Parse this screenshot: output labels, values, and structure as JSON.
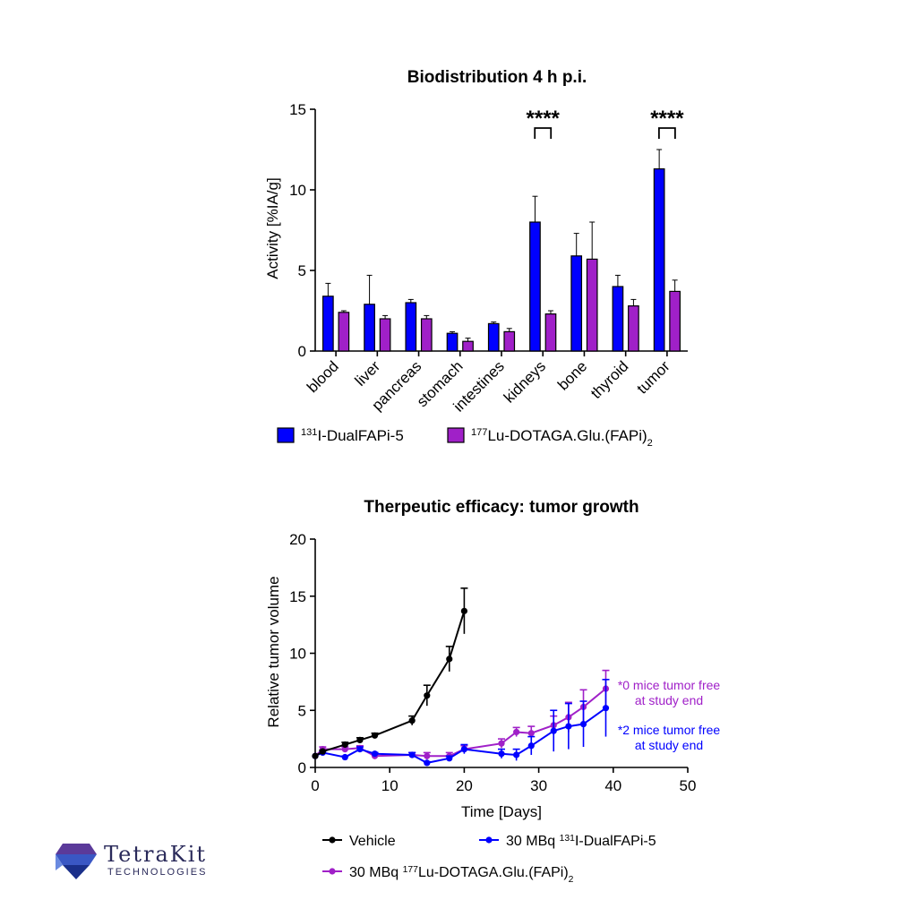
{
  "chart_data": [
    {
      "type": "bar",
      "title": "Biodistribution 4 h p.i.",
      "xlabel": "",
      "ylabel": "Activity [%IA/g]",
      "ylim": [
        0,
        15
      ],
      "yticks": [
        0,
        5,
        10,
        15
      ],
      "categories": [
        "blood",
        "liver",
        "pancreas",
        "stomach",
        "intestines",
        "kidneys",
        "bone",
        "thyroid",
        "tumor"
      ],
      "series": [
        {
          "name_sup": "131",
          "name_main": "I-DualFAPi-5",
          "color": "#0000ff",
          "values": [
            3.4,
            2.9,
            3.0,
            1.1,
            1.7,
            8.0,
            5.9,
            4.0,
            11.3
          ],
          "errors": [
            0.8,
            1.8,
            0.2,
            0.1,
            0.1,
            1.6,
            1.4,
            0.7,
            1.2
          ]
        },
        {
          "name_sup": "177",
          "name_main": "Lu-DOTAGA.Glu.(FAPi)",
          "name_sub": "2",
          "color": "#a020c8",
          "values": [
            2.4,
            2.0,
            2.0,
            0.6,
            1.2,
            2.3,
            5.7,
            2.8,
            3.7
          ],
          "errors": [
            0.1,
            0.2,
            0.2,
            0.2,
            0.2,
            0.2,
            2.3,
            0.4,
            0.7
          ]
        }
      ],
      "significance": [
        {
          "category": "kidneys",
          "label": "****"
        },
        {
          "category": "tumor",
          "label": "****"
        }
      ],
      "legend_position": "bottom",
      "grid": false
    },
    {
      "type": "line",
      "title": "Therpeutic efficacy: tumor growth",
      "xlabel": "Time [Days]",
      "ylabel": "Relative tumor volume",
      "xlim": [
        0,
        50
      ],
      "ylim": [
        0,
        20
      ],
      "xticks": [
        0,
        10,
        20,
        30,
        40,
        50
      ],
      "yticks": [
        0,
        5,
        10,
        15,
        20
      ],
      "series": [
        {
          "name_main": "Vehicle",
          "color": "#000000",
          "x": [
            0,
            1,
            4,
            6,
            8,
            13,
            15,
            18,
            20
          ],
          "y": [
            1.0,
            1.4,
            2.0,
            2.4,
            2.8,
            4.1,
            6.3,
            9.5,
            13.7
          ],
          "errors": [
            0,
            0.1,
            0.2,
            0.2,
            0.2,
            0.4,
            0.9,
            1.1,
            2.0
          ]
        },
        {
          "name_prefix": "30 MBq ",
          "name_sup": "131",
          "name_main": "I-DualFAPi-5",
          "color": "#0000ff",
          "x": [
            0,
            1,
            4,
            6,
            8,
            13,
            15,
            18,
            20,
            25,
            27,
            29,
            32,
            34,
            36,
            39
          ],
          "y": [
            1.0,
            1.3,
            0.9,
            1.6,
            1.2,
            1.1,
            0.4,
            0.8,
            1.6,
            1.2,
            1.1,
            1.9,
            3.2,
            3.6,
            3.8,
            5.2
          ],
          "errors": [
            0,
            0.1,
            0.1,
            0.2,
            0.1,
            0.2,
            0.1,
            0.2,
            0.4,
            0.4,
            0.5,
            0.8,
            1.8,
            2.0,
            2.0,
            2.5
          ]
        },
        {
          "name_prefix": "30 MBq ",
          "name_sup": "177",
          "name_main": "Lu-DOTAGA.Glu.(FAPi)",
          "name_sub": "2",
          "color": "#a020c8",
          "x": [
            0,
            1,
            4,
            6,
            8,
            13,
            15,
            18,
            20,
            25,
            27,
            29,
            32,
            34,
            36,
            39
          ],
          "y": [
            1.0,
            1.6,
            1.6,
            1.7,
            1.0,
            1.1,
            1.0,
            1.0,
            1.6,
            2.1,
            3.1,
            3.0,
            3.7,
            4.4,
            5.3,
            6.9
          ],
          "errors": [
            0,
            0.2,
            0.2,
            0.2,
            0.1,
            0.2,
            0.3,
            0.3,
            0.3,
            0.4,
            0.4,
            0.6,
            0.8,
            1.3,
            1.5,
            1.6
          ]
        }
      ],
      "annotations": [
        {
          "lines": [
            "*0 mice tumor free",
            "at study end"
          ],
          "color": "#a020c8"
        },
        {
          "lines": [
            "*2 mice tumor free",
            "at study end"
          ],
          "color": "#0000ff"
        }
      ],
      "legend_position": "bottom",
      "grid": false
    }
  ],
  "logo": {
    "name": "TetraKit",
    "tagline": "TECHNOLOGIES"
  }
}
